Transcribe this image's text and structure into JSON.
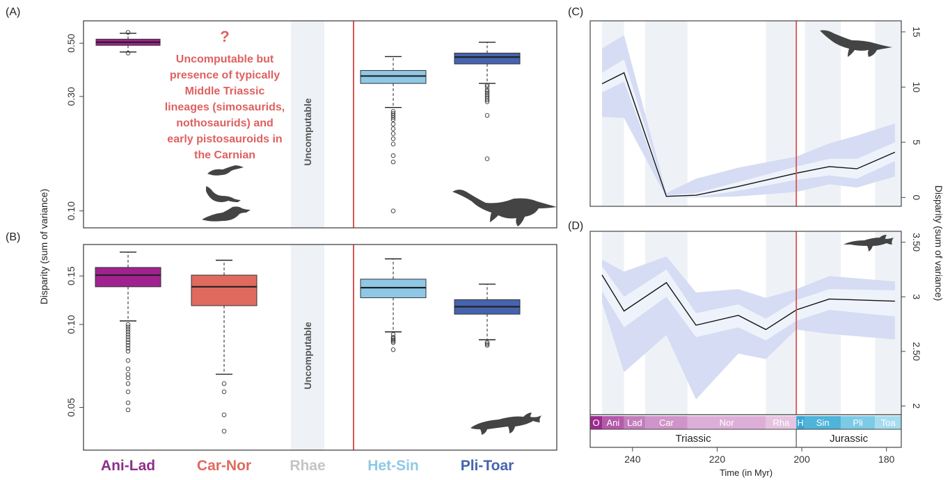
{
  "panel_labels": {
    "A": "(A)",
    "B": "(B)",
    "C": "(C)",
    "D": "(D)"
  },
  "left_ylabel": "Disparity (sum of variance)",
  "right_ylabel": "Disparity (sum of variance)",
  "annotation": {
    "question_mark": "?",
    "lines": [
      "Uncomputable but",
      "presence of typically",
      "Middle Triassic",
      "lineages (simosaurids,",
      "nothosaurids) and",
      "early pistosauroids in",
      "the Carnian"
    ]
  },
  "uncomputable_label": "Uncomputable",
  "categories": [
    {
      "label": "Ani-Lad",
      "color": "#8e2d8a"
    },
    {
      "label": "Car-Nor",
      "color": "#e06a5e"
    },
    {
      "label": "Rhae",
      "color": "#c4c4c4"
    },
    {
      "label": "Het-Sin",
      "color": "#8ec8e6"
    },
    {
      "label": "Pli-Toar",
      "color": "#4663ae"
    }
  ],
  "colors": {
    "boundary_line": "#d9534f",
    "band_outer": "#d5dcf3",
    "band_inner": "#eef3fb",
    "shade": "#eef2f6",
    "box_ani": "#a0228f",
    "box_car": "#e06a5e",
    "box_het": "#8ec8e6",
    "box_pli": "#4663ae"
  },
  "icons": [
    "plesiosaur-silhouette-icon",
    "ichthyosaur-silhouette-icon",
    "small-sauropterygian-icons"
  ],
  "chart_data": [
    {
      "type": "box",
      "panel": "A",
      "yscale": "log",
      "yticks": [
        {
          "value": 0.5,
          "label": "0.50"
        },
        {
          "value": 0.3,
          "label": "0.30"
        },
        {
          "value": 0.1,
          "label": "0.10"
        }
      ],
      "ylim": [
        0.085,
        0.62
      ],
      "boxes": [
        {
          "category": "Ani-Lad",
          "whisker_low": 0.46,
          "q1": 0.49,
          "median": 0.505,
          "q3": 0.52,
          "whisker_high": 0.55,
          "outliers": [
            0.455,
            0.555
          ]
        },
        {
          "category": "Het-Sin",
          "whisker_low": 0.27,
          "q1": 0.34,
          "median": 0.365,
          "q3": 0.385,
          "whisker_high": 0.44,
          "outliers": [
            0.26,
            0.255,
            0.25,
            0.245,
            0.24,
            0.23,
            0.22,
            0.21,
            0.2,
            0.19,
            0.17,
            0.16,
            0.1
          ]
        },
        {
          "category": "Pli-Toar",
          "whisker_low": 0.34,
          "q1": 0.41,
          "median": 0.438,
          "q3": 0.455,
          "whisker_high": 0.505,
          "outliers": [
            0.335,
            0.33,
            0.32,
            0.315,
            0.31,
            0.305,
            0.3,
            0.295,
            0.29,
            0.285,
            0.25,
            0.165
          ]
        }
      ]
    },
    {
      "type": "box",
      "panel": "B",
      "yscale": "log",
      "yticks": [
        {
          "value": 0.15,
          "label": "0.15"
        },
        {
          "value": 0.1,
          "label": "0.10"
        },
        {
          "value": 0.05,
          "label": "0.05"
        }
      ],
      "ylim": [
        0.035,
        0.195
      ],
      "boxes": [
        {
          "category": "Ani-Lad",
          "whisker_low": 0.103,
          "q1": 0.137,
          "median": 0.151,
          "q3": 0.161,
          "whisker_high": 0.183,
          "outliers": [
            0.1,
            0.098,
            0.096,
            0.094,
            0.092,
            0.09,
            0.088,
            0.086,
            0.084,
            0.082,
            0.08,
            0.074,
            0.069,
            0.066,
            0.064,
            0.061,
            0.057,
            0.052,
            0.049
          ]
        },
        {
          "category": "Car-Nor",
          "whisker_low": 0.066,
          "q1": 0.117,
          "median": 0.137,
          "q3": 0.151,
          "whisker_high": 0.171,
          "outliers": [
            0.061,
            0.057,
            0.047,
            0.041
          ]
        },
        {
          "category": "Het-Sin",
          "whisker_low": 0.094,
          "q1": 0.125,
          "median": 0.136,
          "q3": 0.146,
          "whisker_high": 0.173,
          "outliers": [
            0.092,
            0.09,
            0.089,
            0.088,
            0.087,
            0.086,
            0.081
          ]
        },
        {
          "category": "Pli-Toar",
          "whisker_low": 0.088,
          "q1": 0.109,
          "median": 0.116,
          "q3": 0.123,
          "whisker_high": 0.14,
          "outliers": [
            0.086,
            0.085,
            0.084
          ]
        }
      ]
    },
    {
      "type": "line",
      "panel": "C",
      "x": [
        247.2,
        242,
        232,
        225,
        215,
        201.3,
        193.5,
        187,
        178
      ],
      "y": [
        10.3,
        11.3,
        0.1,
        0.2,
        1,
        2.2,
        2.8,
        2.6,
        4.1
      ],
      "ci_inner_low": [
        9.5,
        10.5,
        0.0,
        0.05,
        0.6,
        1.6,
        2.0,
        1.7,
        3.3
      ],
      "ci_inner_high": [
        11.3,
        12.5,
        0.2,
        0.4,
        1.4,
        2.8,
        3.5,
        3.5,
        5.0
      ],
      "ci_outer_low": [
        7.3,
        7.2,
        0.0,
        0.0,
        0.1,
        0.5,
        1.2,
        0.9,
        1.9
      ],
      "ci_outer_high": [
        13.5,
        14.7,
        0.4,
        1.7,
        2.7,
        3.7,
        4.9,
        5.6,
        6.7
      ],
      "xlim": [
        250,
        176.5
      ],
      "ylim": [
        -0.8,
        16
      ],
      "yticks": [
        0,
        5,
        10,
        15
      ]
    },
    {
      "type": "line",
      "panel": "D",
      "x": [
        247.2,
        242,
        232,
        225,
        215,
        208.5,
        201.3,
        193.5,
        178
      ],
      "y": [
        3.2,
        2.87,
        3.13,
        2.74,
        2.83,
        2.7,
        2.88,
        2.98,
        2.96
      ],
      "ci_inner_low": [
        3.05,
        2.72,
        3.0,
        2.63,
        2.72,
        2.6,
        2.78,
        2.88,
        2.82
      ],
      "ci_inner_high": [
        3.28,
        3.0,
        3.25,
        2.85,
        2.93,
        2.8,
        2.97,
        3.07,
        3.06
      ],
      "ci_outer_low": [
        2.95,
        2.31,
        2.65,
        2.06,
        2.48,
        2.43,
        2.7,
        2.66,
        2.61
      ],
      "ci_outer_high": [
        3.34,
        3.23,
        3.37,
        3.04,
        3.07,
        2.99,
        3.07,
        3.19,
        3.14
      ],
      "xlim": [
        250,
        176.5
      ],
      "ylim": [
        1.92,
        3.6
      ],
      "yticks": [
        {
          "value": 2,
          "label": "2"
        },
        {
          "value": 2.5,
          "label": "2.50"
        },
        {
          "value": 3,
          "label": "3"
        },
        {
          "value": 3.5,
          "label": "3.50"
        }
      ],
      "xlabel": "Time (in Myr)",
      "xticks": [
        240,
        220,
        200,
        180
      ]
    }
  ],
  "timescale": {
    "stages": [
      {
        "label": "O",
        "start": 250,
        "end": 247.2,
        "color": "#9b2c8f"
      },
      {
        "label": "Ani",
        "start": 247.2,
        "end": 242,
        "color": "#b45aab"
      },
      {
        "label": "Lad",
        "start": 242,
        "end": 237,
        "color": "#c27ebb"
      },
      {
        "label": "Car",
        "start": 237,
        "end": 227,
        "color": "#cf94c9"
      },
      {
        "label": "Nor",
        "start": 227,
        "end": 208.5,
        "color": "#ddafd8"
      },
      {
        "label": "Rha",
        "start": 208.5,
        "end": 201.3,
        "color": "#e6c3e1"
      },
      {
        "label": "H",
        "start": 201.3,
        "end": 199.3,
        "color": "#3aa6d1"
      },
      {
        "label": "Sin",
        "start": 199.3,
        "end": 190.8,
        "color": "#4fb3da"
      },
      {
        "label": "Pli",
        "start": 190.8,
        "end": 182.7,
        "color": "#7ccae6"
      },
      {
        "label": "Toa",
        "start": 182.7,
        "end": 176.5,
        "color": "#a6dcef"
      }
    ],
    "eras": [
      {
        "label": "Triassic",
        "start": 250,
        "end": 201.3
      },
      {
        "label": "Jurassic",
        "start": 201.3,
        "end": 176.5
      }
    ]
  }
}
